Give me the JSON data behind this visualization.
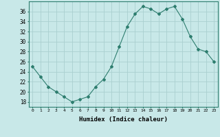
{
  "x": [
    0,
    1,
    2,
    3,
    4,
    5,
    6,
    7,
    8,
    9,
    10,
    11,
    12,
    13,
    14,
    15,
    16,
    17,
    18,
    19,
    20,
    21,
    22,
    23
  ],
  "y": [
    25,
    23,
    21,
    20,
    19,
    18,
    18.5,
    19,
    21,
    22.5,
    25,
    29,
    33,
    35.5,
    37,
    36.5,
    35.5,
    36.5,
    37,
    34.5,
    31,
    28.5,
    28,
    26
  ],
  "line_color": "#2d7d6e",
  "marker": "D",
  "marker_size": 2,
  "bg_color": "#c8e8e8",
  "grid_color": "#aad0d0",
  "xlabel": "Humidex (Indice chaleur)",
  "xlim": [
    -0.5,
    23.5
  ],
  "ylim": [
    17,
    38
  ],
  "yticks": [
    18,
    20,
    22,
    24,
    26,
    28,
    30,
    32,
    34,
    36
  ],
  "xticks": [
    0,
    1,
    2,
    3,
    4,
    5,
    6,
    7,
    8,
    9,
    10,
    11,
    12,
    13,
    14,
    15,
    16,
    17,
    18,
    19,
    20,
    21,
    22,
    23
  ],
  "xtick_labels": [
    "0",
    "1",
    "2",
    "3",
    "4",
    "5",
    "6",
    "7",
    "8",
    "9",
    "10",
    "11",
    "12",
    "13",
    "14",
    "15",
    "16",
    "17",
    "18",
    "19",
    "20",
    "21",
    "22",
    "23"
  ]
}
